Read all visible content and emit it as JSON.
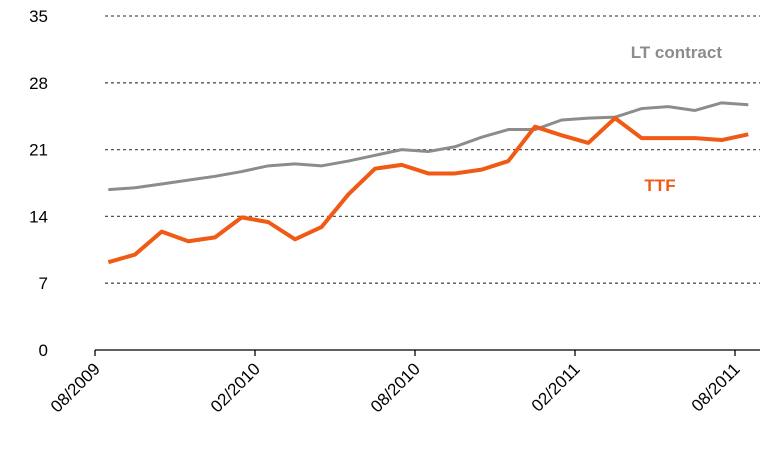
{
  "chart_data": {
    "type": "line",
    "categories": [
      "08/2009",
      null,
      null,
      null,
      null,
      null,
      "02/2010",
      null,
      null,
      null,
      null,
      null,
      "08/2010",
      null,
      null,
      null,
      null,
      null,
      "02/2011",
      null,
      null,
      null,
      null,
      null,
      "08/2011"
    ],
    "series": [
      {
        "name": "LT contract",
        "color": "#8c8c8c",
        "values": [
          16.8,
          17.0,
          17.4,
          17.8,
          18.2,
          18.7,
          19.3,
          19.5,
          19.3,
          19.8,
          20.4,
          21.0,
          20.8,
          21.3,
          22.3,
          23.1,
          23.1,
          24.1,
          24.3,
          24.4,
          25.3,
          25.5,
          25.1,
          25.9,
          25.7
        ]
      },
      {
        "name": "TTF",
        "color": "#f05a14",
        "values": [
          9.2,
          10.0,
          12.4,
          11.4,
          11.8,
          13.9,
          13.4,
          11.6,
          12.9,
          16.3,
          19.0,
          19.4,
          18.5,
          18.5,
          18.9,
          19.8,
          23.4,
          22.5,
          21.7,
          24.3,
          22.2,
          22.2,
          22.2,
          22.0,
          22.6
        ]
      }
    ],
    "ylim": [
      0,
      35
    ],
    "yticks": [
      0,
      7,
      14,
      21,
      28,
      35
    ],
    "grid": true
  }
}
